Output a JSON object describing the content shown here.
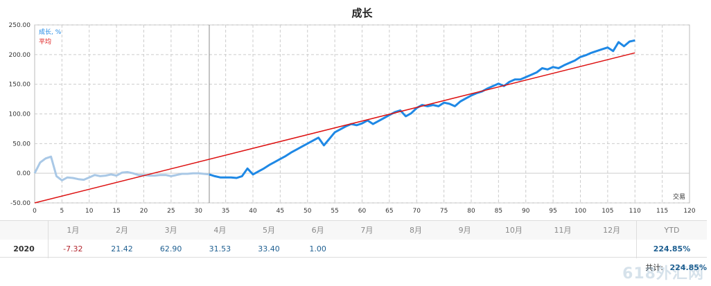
{
  "colors": {
    "growth_line": "#1e88e5",
    "growth_faded": "#a9c8e6",
    "average_line": "#dd1111",
    "grid": "#cccccc",
    "negative_value": "#b3262e",
    "positive_value": "#1e5f91"
  },
  "chart_data": {
    "type": "line",
    "title": "成长",
    "xlabel": "交易",
    "ylabel": "",
    "xlim": [
      0,
      120
    ],
    "ylim": [
      -50,
      250
    ],
    "x_ticks": [
      "0",
      "5",
      "10",
      "15",
      "20",
      "25",
      "30",
      "35",
      "40",
      "45",
      "50",
      "55",
      "60",
      "65",
      "70",
      "75",
      "80",
      "85",
      "90",
      "95",
      "100",
      "105",
      "110",
      "115",
      "120"
    ],
    "y_ticks": [
      "-50.00",
      "0.00",
      "50.00",
      "100.00",
      "150.00",
      "200.00",
      "250.00"
    ],
    "grid": true,
    "legend_position": "top-left",
    "marker_x": 32,
    "series": [
      {
        "name": "成长, %",
        "x": [
          0,
          1,
          2,
          3,
          4,
          5,
          6,
          7,
          8,
          9,
          10,
          11,
          12,
          13,
          14,
          15,
          16,
          17,
          18,
          19,
          20,
          21,
          22,
          23,
          24,
          25,
          26,
          27,
          28,
          29,
          30,
          31,
          32,
          33,
          34,
          35,
          36,
          37,
          38,
          39,
          40,
          41,
          42,
          43,
          44,
          45,
          46,
          47,
          48,
          49,
          50,
          51,
          52,
          53,
          54,
          55,
          56,
          57,
          58,
          59,
          60,
          61,
          62,
          63,
          64,
          65,
          66,
          67,
          68,
          69,
          70,
          71,
          72,
          73,
          74,
          75,
          76,
          77,
          78,
          79,
          80,
          81,
          82,
          83,
          84,
          85,
          86,
          87,
          88,
          89,
          90,
          91,
          92,
          93,
          94,
          95,
          96,
          97,
          98,
          99,
          100,
          101,
          102,
          103,
          104,
          105,
          106,
          107,
          108,
          109,
          110
        ],
        "values": [
          0,
          18,
          25,
          28,
          -5,
          -12,
          -7,
          -8,
          -10,
          -11,
          -7,
          -3,
          -5,
          -4,
          -2,
          -4,
          1,
          2,
          0,
          -3,
          -3,
          -4,
          -4,
          -3,
          -3,
          -5,
          -3,
          -1,
          -1,
          0,
          0,
          -1,
          -2,
          -5,
          -7,
          -7,
          -7,
          -8,
          -5,
          8,
          -2,
          3,
          8,
          14,
          19,
          24,
          29,
          35,
          40,
          45,
          50,
          55,
          60,
          47,
          58,
          69,
          74,
          79,
          83,
          81,
          84,
          89,
          83,
          88,
          93,
          98,
          103,
          106,
          96,
          101,
          110,
          115,
          113,
          115,
          113,
          119,
          117,
          113,
          121,
          126,
          131,
          135,
          138,
          143,
          147,
          151,
          147,
          154,
          158,
          158,
          162,
          166,
          170,
          177,
          175,
          179,
          177,
          182,
          186,
          190,
          196,
          199,
          203,
          206,
          209,
          212,
          206,
          221,
          214,
          222,
          224
        ]
      },
      {
        "name": "平均",
        "x": [
          0,
          110
        ],
        "values": [
          -50,
          203
        ]
      }
    ]
  },
  "table": {
    "months": [
      "1月",
      "2月",
      "3月",
      "4月",
      "5月",
      "6月",
      "7月",
      "8月",
      "9月",
      "10月",
      "11月",
      "12月"
    ],
    "ytd_label": "YTD",
    "rows": [
      {
        "year": "2020",
        "values": [
          "-7.32",
          "21.42",
          "62.90",
          "31.53",
          "33.40",
          "1.00",
          "",
          "",
          "",
          "",
          "",
          ""
        ],
        "ytd": "224.85%"
      }
    ]
  },
  "total": {
    "label": "共计:",
    "value": "224.85%"
  },
  "watermark": "618外汇网"
}
